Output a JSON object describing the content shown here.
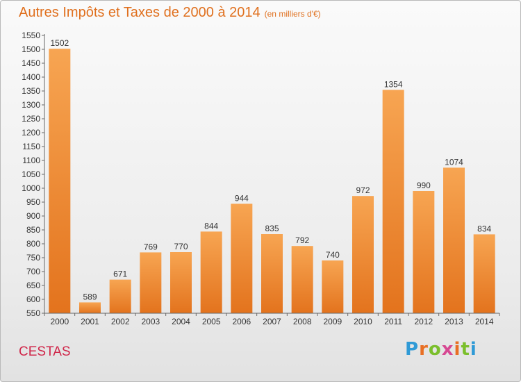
{
  "header": {
    "title": "Autres Impôts et Taxes de 2000 à 2014",
    "unit": "(en milliers d'€)"
  },
  "footer": {
    "city": "CESTAS",
    "logo_text": "Proxiti"
  },
  "colors": {
    "bar_top": "#f7a552",
    "bar_bottom": "#e3731d",
    "title": "#e0701e",
    "city": "#d0274a",
    "axis": "#666666"
  },
  "chart_data": {
    "type": "bar",
    "title": "Autres Impôts et Taxes de 2000 à 2014",
    "subtitle": "(en milliers d'€)",
    "xlabel": "",
    "ylabel": "",
    "categories": [
      "2000",
      "2001",
      "2002",
      "2003",
      "2004",
      "2005",
      "2006",
      "2007",
      "2008",
      "2009",
      "2010",
      "2011",
      "2012",
      "2013",
      "2014"
    ],
    "values": [
      1502,
      589,
      671,
      769,
      770,
      844,
      944,
      835,
      792,
      740,
      972,
      1354,
      990,
      1074,
      834
    ],
    "ylim": [
      550,
      1550
    ],
    "ytick_step": 50,
    "grid": false,
    "data_labels": true
  }
}
